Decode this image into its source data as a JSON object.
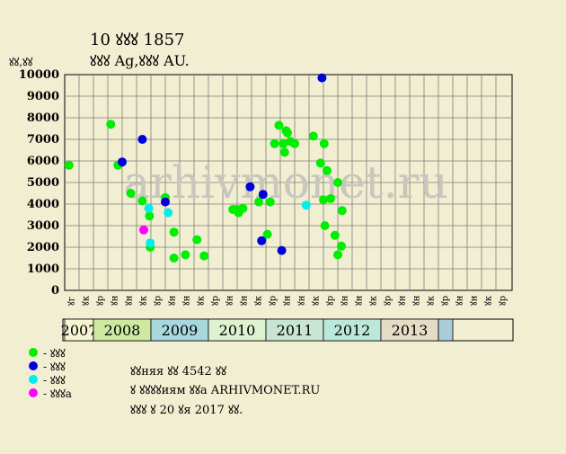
{
  "header": {
    "title": "10 ꙋꙋꙋ 1857",
    "subtitle": "ꙋꙋꙋ Ag,ꙋꙋꙋ AU.",
    "y_unit": "ꙋꙋ,ꙋꙋ"
  },
  "watermark": "arhivmonet.ru",
  "legend": [
    {
      "label": "- ꙋꙋꙋ",
      "color": "#00ee00"
    },
    {
      "label": "- ꙋꙋꙋ",
      "color": "#0000dd"
    },
    {
      "label": "- ꙋꙋꙋ",
      "color": "#00eeee"
    },
    {
      "label": "- ꙋꙋꙋa",
      "color": "#ff00ff"
    }
  ],
  "notes": [
    "ꙋꙋняя ꙋꙋ 4542 ꙋꙋ",
    "ꙋ ꙋꙋꙋꙋиям ꙋꙋa ARHIVMONET.RU",
    "ꙋꙋꙋ ꙋ 20 ꙋя 2017 ꙋꙋ."
  ],
  "chart_data": {
    "type": "scatter",
    "ylim": [
      0,
      10000
    ],
    "yticks": [
      0,
      1000,
      2000,
      3000,
      4000,
      5000,
      6000,
      7000,
      8000,
      9000,
      10000
    ],
    "grid": true,
    "x_slot_labels": [
      "ꙋг",
      "ꙋк",
      "ꙋр",
      "ꙋн",
      "ꙋн",
      "ꙋк",
      "ꙋр",
      "ꙋн",
      "ꙋн",
      "ꙋк",
      "ꙋр",
      "ꙋн",
      "ꙋн",
      "ꙋк",
      "ꙋр",
      "ꙋн",
      "ꙋн",
      "ꙋк",
      "ꙋр",
      "ꙋн",
      "ꙋн",
      "ꙋк",
      "ꙋр",
      "ꙋн",
      "ꙋн",
      "ꙋк",
      "ꙋр",
      "ꙋн",
      "ꙋн",
      "ꙋк",
      "ꙋр"
    ],
    "year_bands": [
      {
        "label": "2007",
        "from": 0,
        "to": 2,
        "color": "#f5f5d2"
      },
      {
        "label": "2008",
        "from": 2,
        "to": 6,
        "color": "#cdeaa0"
      },
      {
        "label": "2009",
        "from": 6,
        "to": 10,
        "color": "#a8d8de"
      },
      {
        "label": "2010",
        "from": 10,
        "to": 14,
        "color": "#def2d2"
      },
      {
        "label": "2011",
        "from": 14,
        "to": 18,
        "color": "#c8e4d2"
      },
      {
        "label": "2012",
        "from": 18,
        "to": 22,
        "color": "#bce8da"
      },
      {
        "label": "2013",
        "from": 22,
        "to": 26,
        "color": "#e4dcc4"
      },
      {
        "label": "",
        "from": 26,
        "to": 27,
        "color": "#a8ccd8"
      }
    ],
    "series": [
      {
        "color": "#00ee00",
        "points": [
          {
            "x": 0.3,
            "y": 5800
          },
          {
            "x": 3.2,
            "y": 7700
          },
          {
            "x": 3.7,
            "y": 5800
          },
          {
            "x": 4.6,
            "y": 4500
          },
          {
            "x": 5.4,
            "y": 4150
          },
          {
            "x": 5.9,
            "y": 3450
          },
          {
            "x": 5.95,
            "y": 2000
          },
          {
            "x": 7.0,
            "y": 4300
          },
          {
            "x": 7.6,
            "y": 2700
          },
          {
            "x": 7.6,
            "y": 1500
          },
          {
            "x": 8.4,
            "y": 1650
          },
          {
            "x": 9.2,
            "y": 2350
          },
          {
            "x": 9.7,
            "y": 1600
          },
          {
            "x": 11.7,
            "y": 3750
          },
          {
            "x": 12.0,
            "y": 3750
          },
          {
            "x": 12.1,
            "y": 3600
          },
          {
            "x": 12.4,
            "y": 3800
          },
          {
            "x": 13.5,
            "y": 4100
          },
          {
            "x": 14.1,
            "y": 2600
          },
          {
            "x": 14.3,
            "y": 4100
          },
          {
            "x": 14.6,
            "y": 6800
          },
          {
            "x": 14.9,
            "y": 7650
          },
          {
            "x": 15.2,
            "y": 6800
          },
          {
            "x": 15.3,
            "y": 6400
          },
          {
            "x": 15.4,
            "y": 7400
          },
          {
            "x": 15.5,
            "y": 7300
          },
          {
            "x": 15.7,
            "y": 6900
          },
          {
            "x": 16.0,
            "y": 6800
          },
          {
            "x": 17.3,
            "y": 7150
          },
          {
            "x": 17.8,
            "y": 5900
          },
          {
            "x": 18.0,
            "y": 4200
          },
          {
            "x": 18.05,
            "y": 6800
          },
          {
            "x": 18.1,
            "y": 3000
          },
          {
            "x": 18.25,
            "y": 5550
          },
          {
            "x": 18.5,
            "y": 4250
          },
          {
            "x": 18.8,
            "y": 2550
          },
          {
            "x": 19.0,
            "y": 5000
          },
          {
            "x": 19.0,
            "y": 1650
          },
          {
            "x": 19.25,
            "y": 2050
          },
          {
            "x": 19.3,
            "y": 3700
          }
        ]
      },
      {
        "color": "#0000dd",
        "points": [
          {
            "x": 4.0,
            "y": 5950
          },
          {
            "x": 5.4,
            "y": 7000
          },
          {
            "x": 7.0,
            "y": 4100
          },
          {
            "x": 12.9,
            "y": 4800
          },
          {
            "x": 13.7,
            "y": 2300
          },
          {
            "x": 13.8,
            "y": 4450
          },
          {
            "x": 15.1,
            "y": 1850
          },
          {
            "x": 17.9,
            "y": 9850
          }
        ]
      },
      {
        "color": "#00eeee",
        "points": [
          {
            "x": 5.85,
            "y": 3800
          },
          {
            "x": 5.95,
            "y": 2200
          },
          {
            "x": 7.2,
            "y": 3600
          },
          {
            "x": 16.8,
            "y": 3950
          }
        ]
      },
      {
        "color": "#ff00ff",
        "points": [
          {
            "x": 5.5,
            "y": 2800
          }
        ]
      }
    ]
  }
}
